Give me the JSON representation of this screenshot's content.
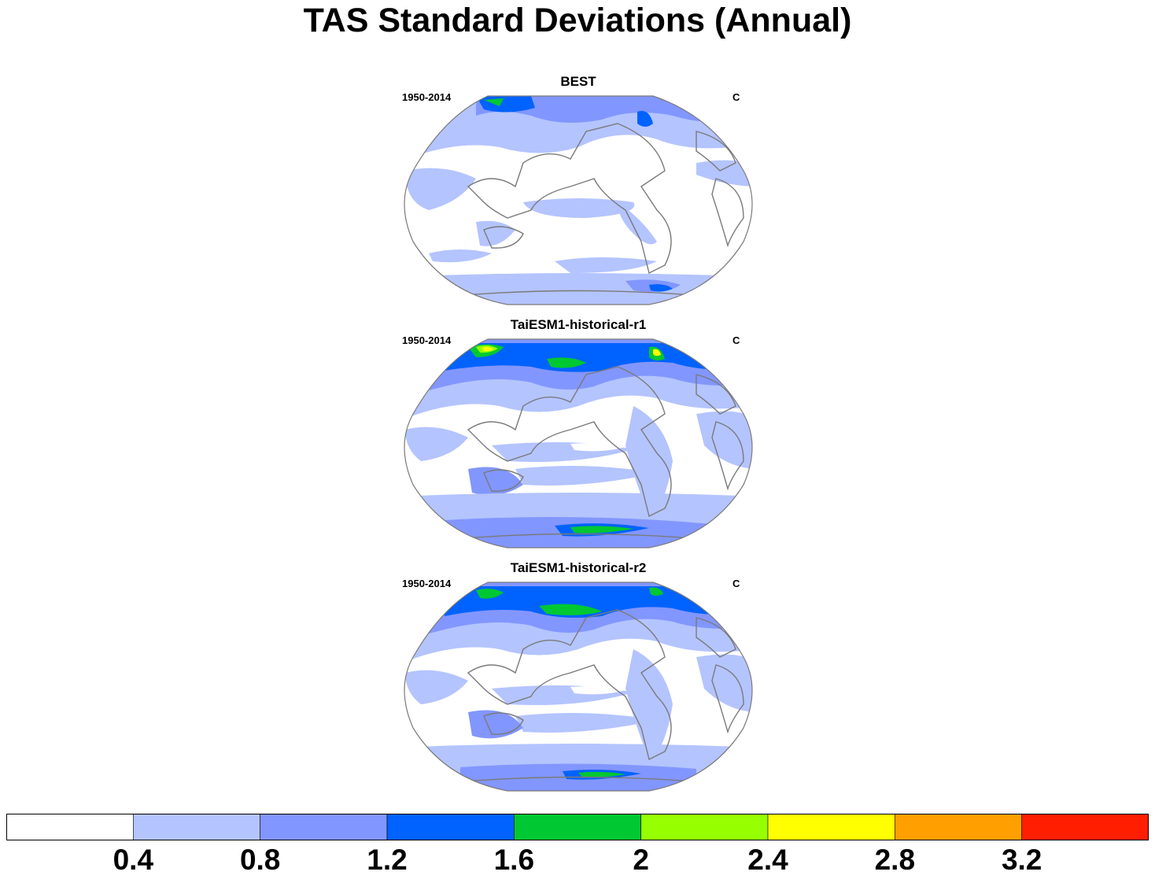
{
  "title": "TAS Standard Deviations (Annual)",
  "panels": [
    {
      "title": "BEST",
      "left_label": "1950-2014",
      "right_label": "C"
    },
    {
      "title": "TaiESM1-historical-r1",
      "left_label": "1950-2014",
      "right_label": "C"
    },
    {
      "title": "TaiESM1-historical-r2",
      "left_label": "1950-2014",
      "right_label": "C"
    }
  ],
  "colorbar": {
    "labels": [
      "0.4",
      "0.8",
      "1.2",
      "1.6",
      "2",
      "2.4",
      "2.8",
      "3.2"
    ],
    "colors": [
      "#ffffff",
      "#b4c4ff",
      "#8296ff",
      "#0062ff",
      "#00c832",
      "#96ff00",
      "#ffff00",
      "#ffa000",
      "#ff1e00"
    ]
  },
  "map_colors": {
    "land_outline": "#7a7a7a",
    "ocean_low": "#ffffff",
    "level_04_08": "#b4c4ff",
    "level_08_12": "#8296ff",
    "level_12_16": "#0062ff",
    "level_16_20": "#00c832",
    "level_20_24": "#96ff00",
    "level_24_28": "#ffff00"
  }
}
